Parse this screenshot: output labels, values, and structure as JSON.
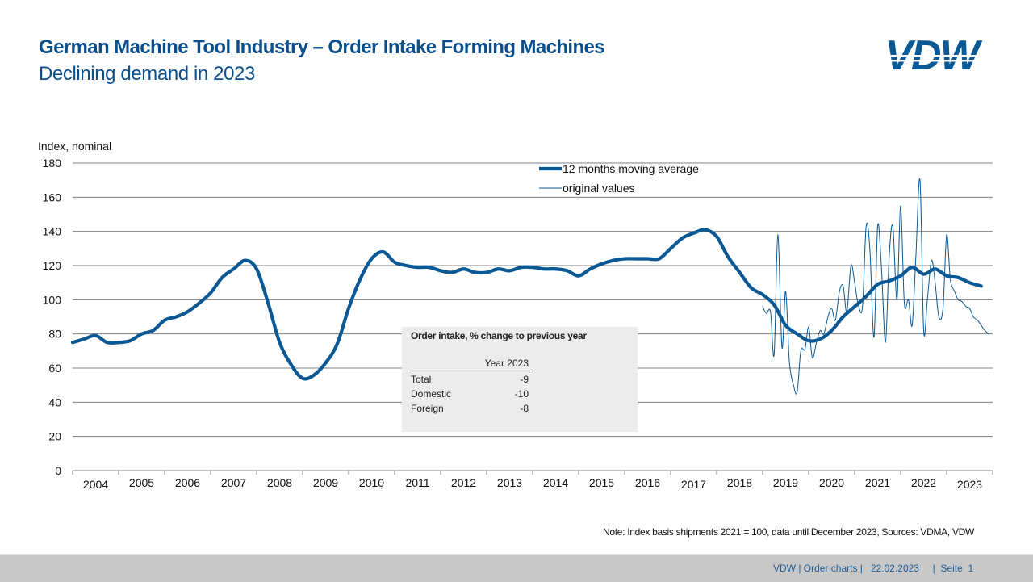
{
  "header": {
    "title": "German Machine Tool Industry – Order Intake Forming Machines",
    "subtitle": "Declining demand in 2023",
    "logo_text": "VDW"
  },
  "inset": {
    "title": "Order intake, % change to previous year",
    "column_header": "Year 2023",
    "rows": [
      {
        "label": "Total",
        "value": "-9"
      },
      {
        "label": "Domestic",
        "value": "-10"
      },
      {
        "label": "Foreign",
        "value": "-8"
      }
    ]
  },
  "note": "Note: Index basis shipments 2021 = 100, data until December 2023, Sources: VDMA,  VDW",
  "footer": {
    "text": "VDW | Order charts |   22.02.2023     |  Seite  1"
  },
  "colors": {
    "brand": "#0a4f8c",
    "series": "#0a5894",
    "grid": "#808080",
    "footer_bg": "#c8c8c8"
  },
  "chart_data": {
    "type": "line",
    "title": "German Machine Tool Industry – Order Intake Forming Machines",
    "ylabel": "Index,  nominal",
    "xlabel": "",
    "ylim": [
      0,
      180
    ],
    "yticks": [
      0,
      20,
      40,
      60,
      80,
      100,
      120,
      140,
      160,
      180
    ],
    "xlim": [
      2004.0,
      2024.0
    ],
    "categories": [
      "2004",
      "2005",
      "2006",
      "2007",
      "2008",
      "2009",
      "2010",
      "2011",
      "2012",
      "2013",
      "2014",
      "2015",
      "2016",
      "2017",
      "2018",
      "2019",
      "2020",
      "2021",
      "2022",
      "2023"
    ],
    "grid": true,
    "legend": {
      "placement": "top-center",
      "entries": [
        "12 months moving average",
        "original values"
      ]
    },
    "series": [
      {
        "name": "12 months moving average",
        "style": "thick",
        "x": [
          2004.0,
          2004.25,
          2004.5,
          2004.75,
          2005.0,
          2005.25,
          2005.5,
          2005.75,
          2006.0,
          2006.25,
          2006.5,
          2006.75,
          2007.0,
          2007.25,
          2007.5,
          2007.75,
          2008.0,
          2008.25,
          2008.5,
          2008.75,
          2009.0,
          2009.25,
          2009.5,
          2009.75,
          2010.0,
          2010.25,
          2010.5,
          2010.75,
          2011.0,
          2011.25,
          2011.5,
          2011.75,
          2012.0,
          2012.25,
          2012.5,
          2012.75,
          2013.0,
          2013.25,
          2013.5,
          2013.75,
          2014.0,
          2014.25,
          2014.5,
          2014.75,
          2015.0,
          2015.25,
          2015.5,
          2015.75,
          2016.0,
          2016.25,
          2016.5,
          2016.75,
          2017.0,
          2017.25,
          2017.5,
          2017.75,
          2018.0,
          2018.25,
          2018.5,
          2018.75,
          2019.0,
          2019.25,
          2019.5,
          2019.75,
          2020.0,
          2020.25,
          2020.5,
          2020.75,
          2021.0,
          2021.25,
          2021.5,
          2021.75,
          2022.0,
          2022.25,
          2022.5,
          2022.75,
          2023.0,
          2023.25,
          2023.5,
          2023.75
        ],
        "values": [
          75,
          77,
          79,
          75,
          75,
          76,
          80,
          82,
          88,
          90,
          93,
          98,
          104,
          113,
          118,
          123,
          118,
          98,
          75,
          62,
          54,
          56,
          63,
          74,
          95,
          112,
          124,
          128,
          122,
          120,
          119,
          119,
          117,
          116,
          118,
          116,
          116,
          118,
          117,
          119,
          119,
          118,
          118,
          117,
          114,
          118,
          121,
          123,
          124,
          124,
          124,
          124,
          130,
          136,
          139,
          141,
          137,
          125,
          116,
          107,
          103,
          97,
          85,
          80,
          76,
          77,
          82,
          90,
          96,
          102,
          109,
          111,
          114,
          119,
          115,
          118,
          114,
          113,
          110,
          108
        ]
      },
      {
        "name": "original values",
        "style": "thin",
        "x": [
          2019.0,
          2019.08,
          2019.17,
          2019.25,
          2019.33,
          2019.42,
          2019.5,
          2019.58,
          2019.67,
          2019.75,
          2019.83,
          2019.92,
          2020.0,
          2020.08,
          2020.17,
          2020.25,
          2020.33,
          2020.42,
          2020.5,
          2020.58,
          2020.67,
          2020.75,
          2020.83,
          2020.92,
          2021.0,
          2021.08,
          2021.17,
          2021.25,
          2021.33,
          2021.42,
          2021.5,
          2021.58,
          2021.67,
          2021.75,
          2021.83,
          2021.92,
          2022.0,
          2022.08,
          2022.17,
          2022.25,
          2022.33,
          2022.42,
          2022.5,
          2022.58,
          2022.67,
          2022.75,
          2022.83,
          2022.92,
          2023.0,
          2023.08,
          2023.17,
          2023.25,
          2023.33,
          2023.42,
          2023.5,
          2023.58,
          2023.67,
          2023.75,
          2023.83,
          2023.92
        ],
        "values": [
          96,
          92,
          93,
          68,
          138,
          72,
          105,
          64,
          50,
          46,
          70,
          71,
          84,
          66,
          75,
          82,
          80,
          90,
          95,
          88,
          105,
          108,
          93,
          120,
          110,
          97,
          96,
          143,
          130,
          78,
          143,
          120,
          75,
          125,
          143,
          100,
          155,
          98,
          100,
          85,
          125,
          170,
          82,
          100,
          123,
          110,
          90,
          95,
          138,
          112,
          105,
          100,
          99,
          96,
          95,
          90,
          88,
          85,
          82,
          80
        ]
      }
    ]
  }
}
